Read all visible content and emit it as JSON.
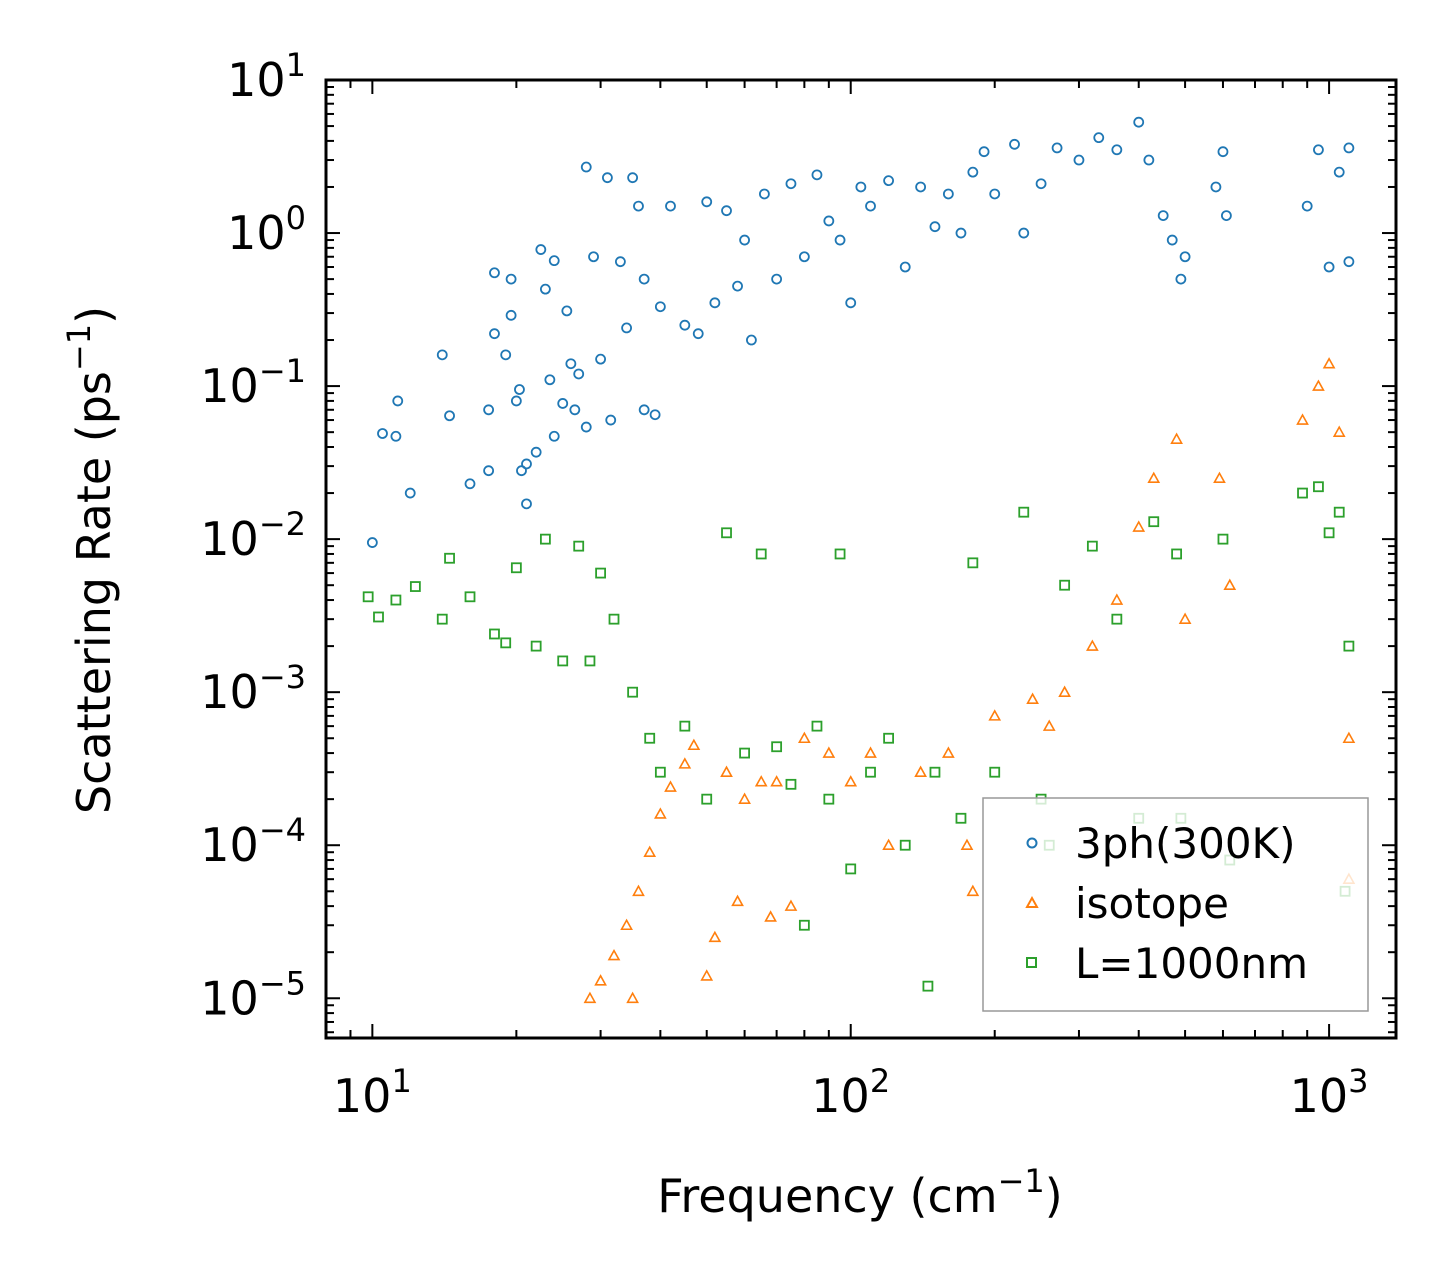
{
  "chart_data": {
    "type": "scatter",
    "title": "",
    "xlabel": "Frequency (cm",
    "xlabel_sup": "−1",
    "xlabel_tail": ")",
    "ylabel": "Scattering Rate (ps",
    "ylabel_sup": "−1",
    "ylabel_tail": ")",
    "xscale": "log",
    "yscale": "log",
    "xlim": [
      8,
      1380
    ],
    "ylim": [
      5.5e-06,
      10
    ],
    "grid": false,
    "legend_position": "bottom-right",
    "x_ticks": [
      {
        "value": 10,
        "base": "10",
        "exp": "1"
      },
      {
        "value": 100,
        "base": "10",
        "exp": "2"
      },
      {
        "value": 1000,
        "base": "10",
        "exp": "3"
      }
    ],
    "y_ticks": [
      {
        "value": 10,
        "base": "10",
        "exp": "1"
      },
      {
        "value": 1,
        "base": "10",
        "exp": "0"
      },
      {
        "value": 0.1,
        "base": "10",
        "exp": "−1"
      },
      {
        "value": 0.01,
        "base": "10",
        "exp": "−2"
      },
      {
        "value": 0.001,
        "base": "10",
        "exp": "−3"
      },
      {
        "value": 0.0001,
        "base": "10",
        "exp": "−4"
      },
      {
        "value": 1e-05,
        "base": "10",
        "exp": "−5"
      }
    ],
    "series": [
      {
        "name": "3ph(300K)",
        "marker": "circle",
        "color": "#1f77b4",
        "points": [
          [
            10,
            0.0095
          ],
          [
            10.5,
            0.049
          ],
          [
            11.2,
            0.047
          ],
          [
            11.3,
            0.08
          ],
          [
            12,
            0.02
          ],
          [
            14,
            0.16
          ],
          [
            14.5,
            0.064
          ],
          [
            16,
            0.023
          ],
          [
            17.5,
            0.07
          ],
          [
            17.5,
            0.028
          ],
          [
            18,
            0.22
          ],
          [
            18,
            0.55
          ],
          [
            19,
            0.16
          ],
          [
            19.5,
            0.5
          ],
          [
            19.5,
            0.29
          ],
          [
            20,
            0.08
          ],
          [
            20.3,
            0.095
          ],
          [
            20.5,
            0.028
          ],
          [
            21,
            0.017
          ],
          [
            21,
            0.031
          ],
          [
            22,
            0.037
          ],
          [
            22.5,
            0.78
          ],
          [
            23,
            0.43
          ],
          [
            23.5,
            0.11
          ],
          [
            24,
            0.66
          ],
          [
            24,
            0.047
          ],
          [
            25,
            0.077
          ],
          [
            25.5,
            0.31
          ],
          [
            26,
            0.14
          ],
          [
            26.5,
            0.07
          ],
          [
            27,
            0.12
          ],
          [
            28,
            2.7
          ],
          [
            28,
            0.054
          ],
          [
            29,
            0.7
          ],
          [
            30,
            0.15
          ],
          [
            31,
            2.3
          ],
          [
            31.5,
            0.06
          ],
          [
            33,
            0.65
          ],
          [
            34,
            0.24
          ],
          [
            35,
            2.3
          ],
          [
            36,
            1.5
          ],
          [
            37,
            0.07
          ],
          [
            37,
            0.5
          ],
          [
            39,
            0.065
          ],
          [
            40,
            0.33
          ],
          [
            42,
            1.5
          ],
          [
            45,
            0.25
          ],
          [
            48,
            0.22
          ],
          [
            50,
            1.6
          ],
          [
            52,
            0.35
          ],
          [
            55,
            1.4
          ],
          [
            58,
            0.45
          ],
          [
            60,
            0.9
          ],
          [
            62,
            0.2
          ],
          [
            66,
            1.8
          ],
          [
            70,
            0.5
          ],
          [
            75,
            2.1
          ],
          [
            80,
            0.7
          ],
          [
            85,
            2.4
          ],
          [
            90,
            1.2
          ],
          [
            95,
            0.9
          ],
          [
            100,
            0.35
          ],
          [
            105,
            2.0
          ],
          [
            110,
            1.5
          ],
          [
            120,
            2.2
          ],
          [
            130,
            0.6
          ],
          [
            140,
            2.0
          ],
          [
            150,
            1.1
          ],
          [
            160,
            1.8
          ],
          [
            170,
            1.0
          ],
          [
            180,
            2.5
          ],
          [
            190,
            3.4
          ],
          [
            200,
            1.8
          ],
          [
            220,
            3.8
          ],
          [
            230,
            1.0
          ],
          [
            250,
            2.1
          ],
          [
            270,
            3.6
          ],
          [
            300,
            3.0
          ],
          [
            330,
            4.2
          ],
          [
            360,
            3.5
          ],
          [
            400,
            5.3
          ],
          [
            420,
            3.0
          ],
          [
            450,
            1.3
          ],
          [
            470,
            0.9
          ],
          [
            490,
            0.5
          ],
          [
            500,
            0.7
          ],
          [
            580,
            2.0
          ],
          [
            600,
            3.4
          ],
          [
            610,
            1.3
          ],
          [
            900,
            1.5
          ],
          [
            950,
            3.5
          ],
          [
            1000,
            0.6
          ],
          [
            1050,
            2.5
          ],
          [
            1100,
            3.6
          ],
          [
            1100,
            0.65
          ]
        ]
      },
      {
        "name": "isotope",
        "marker": "triangle",
        "color": "#ff7f0e",
        "points": [
          [
            28.5,
            1e-05
          ],
          [
            30,
            1.3e-05
          ],
          [
            32,
            1.9e-05
          ],
          [
            34,
            3e-05
          ],
          [
            35,
            1e-05
          ],
          [
            36,
            5e-05
          ],
          [
            38,
            9e-05
          ],
          [
            40,
            0.00016
          ],
          [
            42,
            0.00024
          ],
          [
            45,
            0.00034
          ],
          [
            47,
            0.00045
          ],
          [
            50,
            1.4e-05
          ],
          [
            52,
            2.5e-05
          ],
          [
            55,
            0.0003
          ],
          [
            58,
            4.3e-05
          ],
          [
            60,
            0.0002
          ],
          [
            65,
            0.00026
          ],
          [
            68,
            3.4e-05
          ],
          [
            70,
            0.00026
          ],
          [
            75,
            4e-05
          ],
          [
            80,
            0.0005
          ],
          [
            90,
            0.0004
          ],
          [
            100,
            0.00026
          ],
          [
            110,
            0.0004
          ],
          [
            120,
            0.0001
          ],
          [
            140,
            0.0003
          ],
          [
            160,
            0.0004
          ],
          [
            175,
            0.0001
          ],
          [
            180,
            5e-05
          ],
          [
            200,
            0.0007
          ],
          [
            240,
            0.0009
          ],
          [
            260,
            0.0006
          ],
          [
            280,
            0.001
          ],
          [
            320,
            0.002
          ],
          [
            360,
            0.004
          ],
          [
            400,
            0.012
          ],
          [
            430,
            0.025
          ],
          [
            480,
            0.045
          ],
          [
            500,
            0.003
          ],
          [
            590,
            0.025
          ],
          [
            620,
            0.005
          ],
          [
            880,
            0.06
          ],
          [
            950,
            0.1
          ],
          [
            1000,
            0.14
          ],
          [
            1050,
            0.05
          ],
          [
            1100,
            0.0005
          ],
          [
            1100,
            6e-05
          ]
        ]
      },
      {
        "name": "L=1000nm",
        "marker": "square",
        "color": "#2ca02c",
        "points": [
          [
            9.8,
            0.0042
          ],
          [
            10.3,
            0.0031
          ],
          [
            11.2,
            0.004
          ],
          [
            12.3,
            0.0049
          ],
          [
            14,
            0.003
          ],
          [
            14.5,
            0.0075
          ],
          [
            16,
            0.0042
          ],
          [
            18,
            0.0024
          ],
          [
            19,
            0.0021
          ],
          [
            20,
            0.0065
          ],
          [
            22,
            0.002
          ],
          [
            23,
            0.01
          ],
          [
            25,
            0.0016
          ],
          [
            27,
            0.009
          ],
          [
            28.5,
            0.0016
          ],
          [
            30,
            0.006
          ],
          [
            32,
            0.003
          ],
          [
            35,
            0.001
          ],
          [
            38,
            0.0005
          ],
          [
            40,
            0.0003
          ],
          [
            45,
            0.0006
          ],
          [
            50,
            0.0002
          ],
          [
            55,
            0.011
          ],
          [
            60,
            0.0004
          ],
          [
            65,
            0.008
          ],
          [
            70,
            0.00044
          ],
          [
            75,
            0.00025
          ],
          [
            80,
            3e-05
          ],
          [
            85,
            0.0006
          ],
          [
            90,
            0.0002
          ],
          [
            95,
            0.008
          ],
          [
            100,
            7e-05
          ],
          [
            110,
            0.0003
          ],
          [
            120,
            0.0005
          ],
          [
            130,
            0.0001
          ],
          [
            145,
            1.2e-05
          ],
          [
            150,
            0.0003
          ],
          [
            170,
            0.00015
          ],
          [
            180,
            0.007
          ],
          [
            200,
            0.0003
          ],
          [
            230,
            0.015
          ],
          [
            250,
            0.0002
          ],
          [
            260,
            0.0001
          ],
          [
            280,
            0.005
          ],
          [
            320,
            0.009
          ],
          [
            360,
            0.003
          ],
          [
            400,
            0.00015
          ],
          [
            430,
            0.013
          ],
          [
            480,
            0.008
          ],
          [
            490,
            0.00015
          ],
          [
            600,
            0.01
          ],
          [
            620,
            8e-05
          ],
          [
            880,
            0.02
          ],
          [
            950,
            0.022
          ],
          [
            1000,
            0.011
          ],
          [
            1050,
            0.015
          ],
          [
            1080,
            5e-05
          ],
          [
            1100,
            0.002
          ]
        ]
      }
    ]
  }
}
